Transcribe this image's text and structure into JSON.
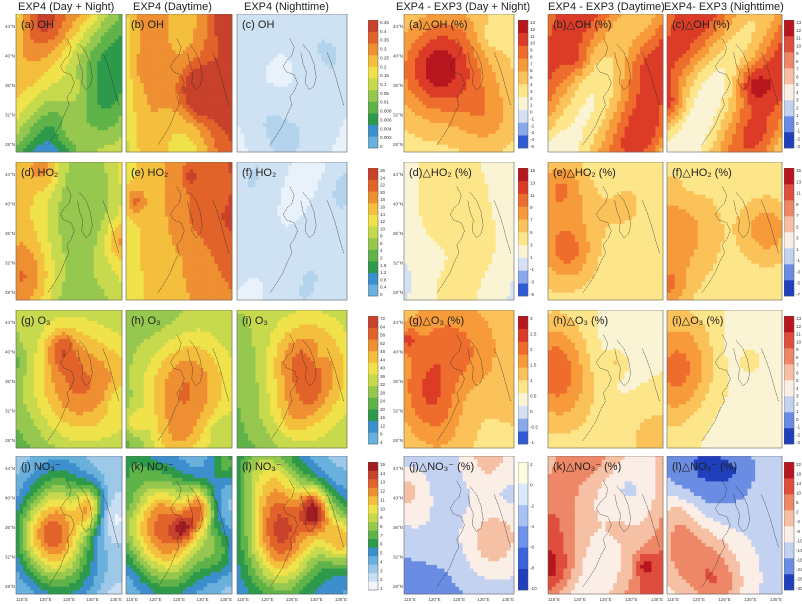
{
  "column_titles": [
    "EXP4 (Day + Night)",
    "EXP4 (Daytime)",
    "EXP4 (Nighttime)",
    "EXP4 - EXP3 (Day + Night)",
    "EXP4 - EXP3 (Daytime)",
    "EXP4- EXP3 (Nighttime)"
  ],
  "lat_labels": [
    "44°N",
    "40°N",
    "36°N",
    "32°N",
    "28°N"
  ],
  "lat_labels_bottom": [
    "44°N",
    "40°N",
    "36°N",
    "32°N",
    "28°N",
    "30°N"
  ],
  "lon_labels": [
    "115°E",
    "120°E",
    "125°E",
    "130°E",
    "135°E"
  ],
  "rows": [
    {
      "key": "oh",
      "labels": [
        "(a) OH",
        "(b) OH",
        "(c) OH",
        "(a)△OH (%)",
        "(b)△OH (%)",
        "(c)△OH (%)"
      ],
      "colorbar_left": [
        "0.45",
        "0.4",
        "0.35",
        "0.3",
        "0.25",
        "0.2",
        "0.15",
        "0.1",
        "0.05",
        "0.01",
        "0.008",
        "0.006",
        "0.004",
        "0.002",
        "0"
      ],
      "colorbar_mid": [
        "13",
        "12",
        "11",
        "10",
        "9",
        "8",
        "7",
        "6",
        "5",
        "4",
        "3",
        "2",
        "1",
        "0",
        "-1",
        "-2",
        "-3",
        "-4",
        "-5"
      ],
      "colorbar_right": [
        "13",
        "12",
        "11",
        "10",
        "9",
        "8",
        "7",
        "6",
        "5",
        "4",
        "3",
        "2",
        "1",
        "0",
        "-1",
        "-2",
        "-3"
      ]
    },
    {
      "key": "ho2",
      "labels": [
        "(d) HO₂",
        "(e) HO₂",
        "(f) HO₂",
        "(d)△HO₂ (%)",
        "(e)△HO₂ (%)",
        "(f)△HO₂ (%)"
      ],
      "colorbar_left": [
        "26",
        "24",
        "22",
        "20",
        "18",
        "16",
        "14",
        "12",
        "10",
        "8",
        "6",
        "4",
        "2",
        "1.6",
        "1.2",
        "0.8",
        "0.4",
        "0"
      ],
      "colorbar_mid": [
        "15",
        "13",
        "11",
        "9",
        "7",
        "5",
        "3",
        "1",
        "-1",
        "-3",
        "-5"
      ],
      "colorbar_right": [
        "15",
        "13",
        "11",
        "9",
        "7",
        "5",
        "3",
        "1",
        "-1",
        "-3",
        "-5",
        "-7"
      ]
    },
    {
      "key": "o3",
      "labels": [
        "(g) O₃",
        "(h) O₃",
        "(i) O₃",
        "(g)△O₃ (%)",
        "(h)△O₃ (%)",
        "(i)△O₃ (%)"
      ],
      "colorbar_left": [
        "72",
        "64",
        "58",
        "52",
        "48",
        "44",
        "40",
        "36",
        "32",
        "28",
        "24",
        "20",
        "16",
        "12",
        "8",
        "4"
      ],
      "colorbar_mid": [
        "3",
        "2.5",
        "2",
        "1.5",
        "1",
        "0.5",
        "0",
        "-0.5",
        "-1"
      ],
      "colorbar_right": [
        "13",
        "12",
        "11",
        "10",
        "9",
        "8",
        "7",
        "6",
        "5",
        "4",
        "3",
        "2",
        "1",
        "0",
        "-1",
        "-2",
        "-3"
      ]
    },
    {
      "key": "no3",
      "labels": [
        "(j) NO₃⁻",
        "(k) NO₃⁻",
        "(l) NO₃⁻",
        "(j)△NO₃⁻ (%)",
        "(k)△NO₃⁻ (%)",
        "(l)△NO₃⁻ (%)"
      ],
      "colorbar_left": [
        "15",
        "14",
        "13",
        "12",
        "11",
        "10",
        "9",
        "8",
        "7",
        "6",
        "5",
        "4",
        "3",
        "2",
        "1"
      ],
      "colorbar_mid": [
        "2",
        "0",
        "-2",
        "-4",
        "-6",
        "-8",
        "-10"
      ],
      "colorbar_right": [
        "22",
        "18",
        "14",
        "10",
        "6",
        "2",
        "-2",
        "-6",
        "-10",
        "-14",
        "-18",
        "-22",
        "-26",
        "-30"
      ]
    }
  ],
  "colors": {
    "conc_scale": [
      "#f2f6fb",
      "#c9def2",
      "#9ec8e8",
      "#6ab0dd",
      "#3c8fcc",
      "#2c9a4a",
      "#5fb348",
      "#96c74f",
      "#c7d94d",
      "#efe24a",
      "#f4bf3c",
      "#ee8f32",
      "#e2632a",
      "#c8412a",
      "#a21d22"
    ],
    "pos_scale": [
      "#2f5bd6",
      "#8aa8ec",
      "#d6e0f5",
      "#fbf4d4",
      "#fde68a",
      "#fbc25a",
      "#f79a3a",
      "#ee6c2c",
      "#dc3c27",
      "#b8161f"
    ],
    "div_scale": [
      "#1f3fbd",
      "#6b8ce3",
      "#c4d2f2",
      "#fbeee6",
      "#f6c0a4",
      "#ee8767",
      "#df4d3e",
      "#b8161f"
    ],
    "land_outline": "#222222"
  }
}
